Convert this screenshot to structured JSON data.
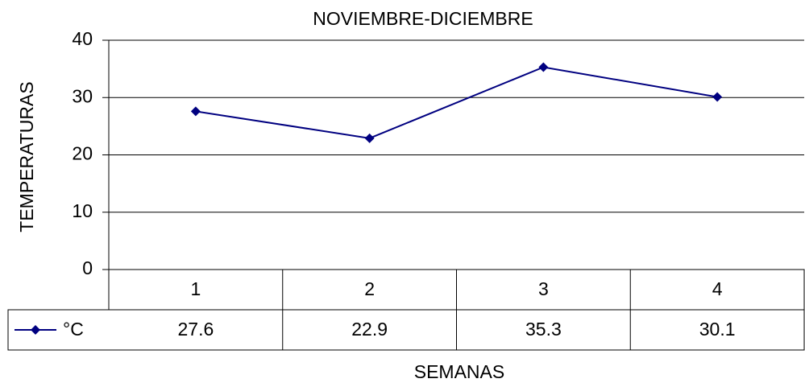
{
  "chart_data": {
    "type": "line",
    "title": "NOVIEMBRE-DICIEMBRE",
    "x_label": "SEMANAS",
    "y_label": "TEMPERATURAS",
    "categories": [
      "1",
      "2",
      "3",
      "4"
    ],
    "series": [
      {
        "name": "°C",
        "color": "#000080",
        "values": [
          27.6,
          22.9,
          35.3,
          30.1
        ]
      }
    ],
    "ylim": [
      0,
      40
    ],
    "yticks": [
      0,
      10,
      20,
      30,
      40
    ],
    "grid": true,
    "data_table": true
  }
}
